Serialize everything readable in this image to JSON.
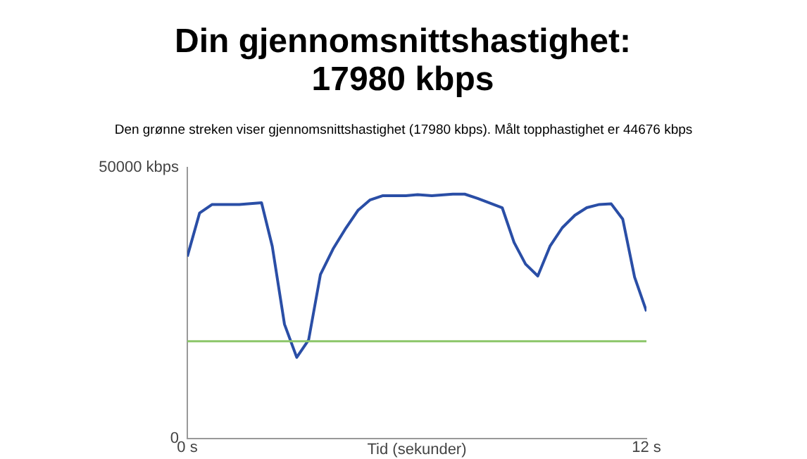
{
  "chart_data": {
    "type": "line",
    "title": "Din gjennomsnittshastighet: 17980 kbps",
    "subtitle": "Den grønne streken viser gjennomsnittshastighet (17980 kbps). Målt topphastighet er 44676 kbps",
    "xlabel": "Tid (sekunder)",
    "x": [
      0,
      0.32,
      0.65,
      1.36,
      1.94,
      2.22,
      2.54,
      2.86,
      3.17,
      3.48,
      3.81,
      4.15,
      4.46,
      4.77,
      5.1,
      5.71,
      6.02,
      6.39,
      6.94,
      7.25,
      7.59,
      8.23,
      8.54,
      8.84,
      9.16,
      9.48,
      9.8,
      10.13,
      10.44,
      10.77,
      11.08,
      11.38,
      11.69,
      12
    ],
    "series": [
      {
        "color": "#2a4ea6",
        "values": [
          33600,
          41600,
          43200,
          43200,
          43500,
          35500,
          21100,
          15000,
          18200,
          30300,
          35000,
          38900,
          42100,
          44000,
          44800,
          44800,
          45000,
          44800,
          45100,
          45100,
          44300,
          42600,
          36200,
          32200,
          30000,
          35500,
          38900,
          41200,
          42600,
          43200,
          43300,
          40500,
          29800,
          23500
        ]
      }
    ],
    "xlim": [
      0,
      12
    ],
    "xticks": [
      {
        "value": 0,
        "label": "0 s"
      },
      {
        "value": 12,
        "label": "12 s"
      }
    ],
    "ylim": [
      0,
      50000
    ],
    "yticks": [
      0,
      {
        "value": 50000,
        "label": "50000 kbps"
      }
    ],
    "ref_lines": [
      {
        "axis": "y",
        "value": 17980,
        "color": "#8cc66a"
      }
    ],
    "marker": "none"
  }
}
